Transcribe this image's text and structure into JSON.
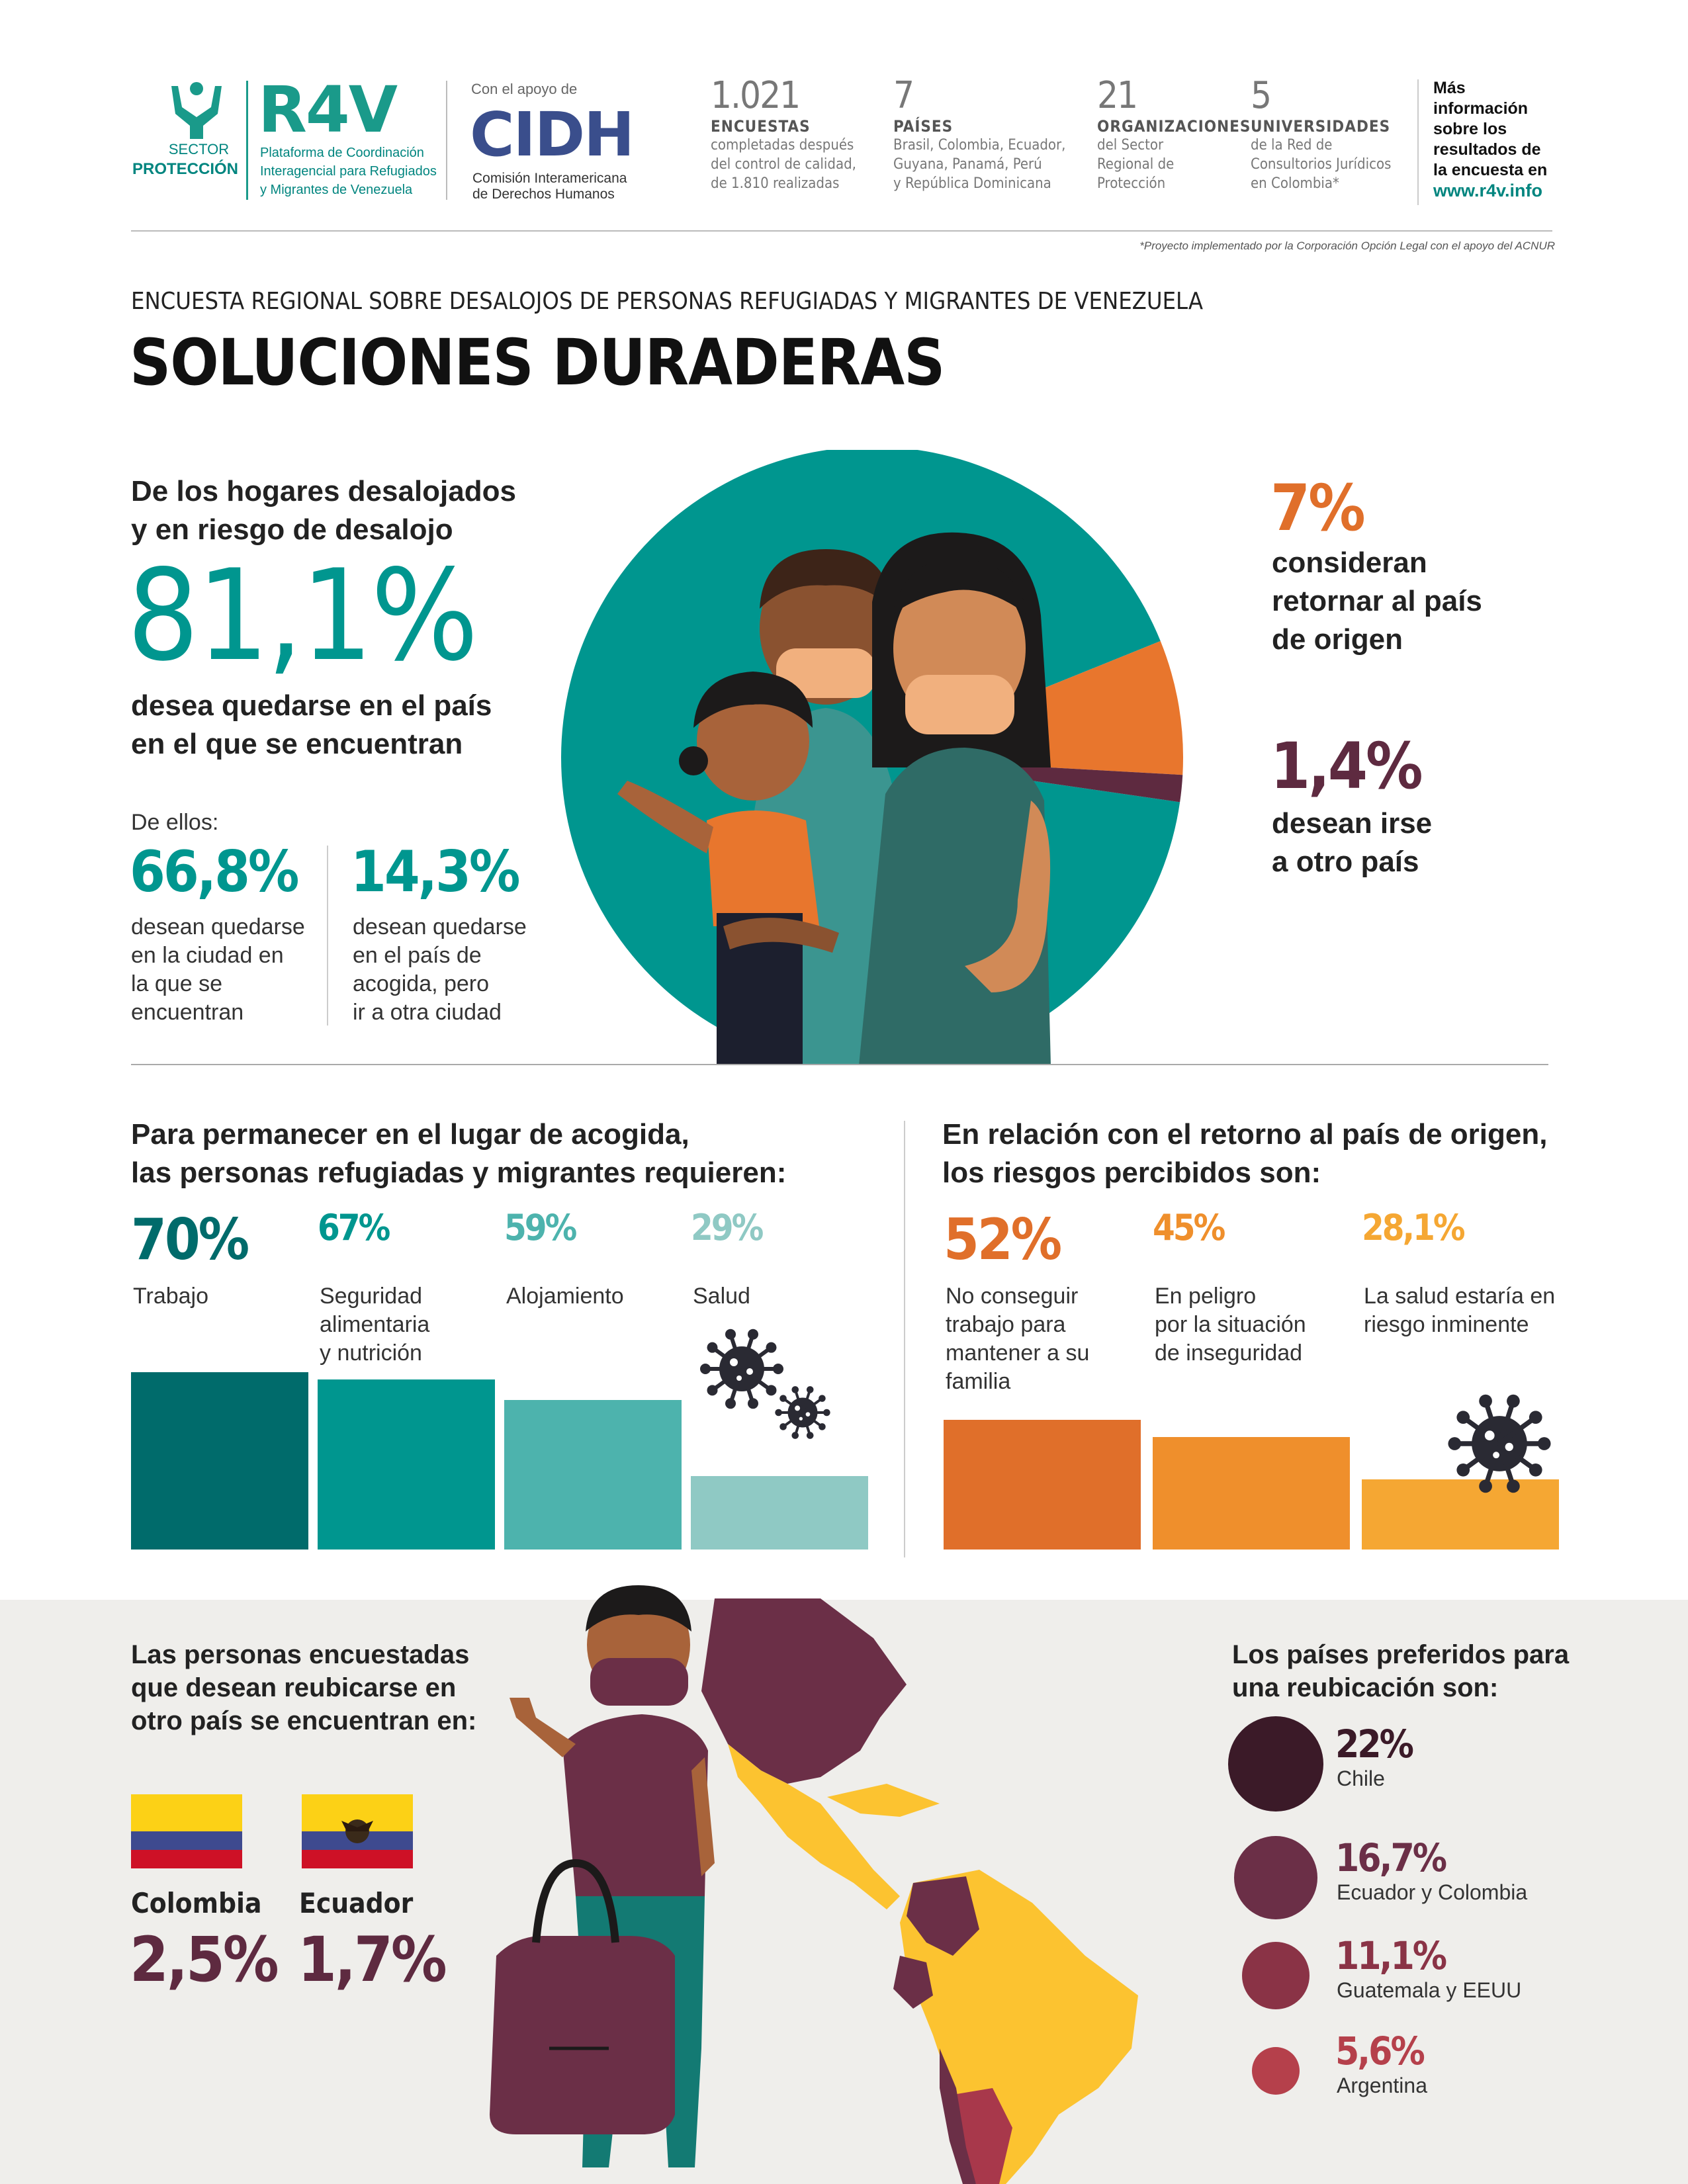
{
  "header": {
    "sector_line1": "SECTOR",
    "sector_line2": "PROTECCIÓN",
    "r4v_logo": "R4V",
    "r4v_desc1": "Plataforma de Coordinación",
    "r4v_desc2": "Interagencial para Refugiados",
    "r4v_desc3": "y Migrantes de Venezuela",
    "support_label": "Con el apoyo de",
    "cidh_logo": "CIDH",
    "cidh_desc1": "Comisión Interamericana",
    "cidh_desc2": "de Derechos Humanos",
    "stats": [
      {
        "num": "1.021",
        "title": "ENCUESTAS",
        "desc": [
          "completadas después",
          "del control de calidad,",
          "de 1.810 realizadas"
        ]
      },
      {
        "num": "7",
        "title": "PAÍSES",
        "desc": [
          "Brasil, Colombia, Ecuador,",
          "Guyana, Panamá, Perú",
          "y República Dominicana"
        ]
      },
      {
        "num": "21",
        "title": "ORGANIZACIONES",
        "desc": [
          "del Sector",
          "Regional de",
          "Protección"
        ]
      },
      {
        "num": "5",
        "title": "UNIVERSIDADES",
        "desc": [
          "de la Red de",
          "Consultorios Jurídicos",
          "en Colombia*"
        ]
      }
    ],
    "more_info": [
      "Más",
      "información",
      "sobre los",
      "resultados de",
      "la encuesta en"
    ],
    "more_info_link": "www.r4v.info",
    "footnote": "*Proyecto implementado por la Corporación Opción Legal con el apoyo del ACNUR"
  },
  "title": {
    "subtitle": "ENCUESTA REGIONAL SOBRE DESALOJOS DE PERSONAS REFUGIADAS Y MIGRANTES DE VENEZUELA",
    "main": "SOLUCIONES DURADERAS"
  },
  "intro": {
    "lead1": "De los hogares desalojados",
    "lead2": "y en riesgo de desalojo",
    "big_pct": "81,1%",
    "big_desc1": "desea quedarse en el país",
    "big_desc2": "en el que se encuentran",
    "de_ellos": "De ellos:",
    "sub1_pct": "66,8%",
    "sub1_desc": [
      "desean quedarse",
      "en la ciudad en",
      "la que se",
      "encuentran"
    ],
    "sub2_pct": "14,3%",
    "sub2_desc": [
      "desean quedarse",
      "en el país de",
      "acogida, pero",
      "ir a otra ciudad"
    ],
    "right1_pct": "7%",
    "right1_desc": [
      "consideran",
      "retornar al país",
      "de origen"
    ],
    "right2_pct": "1,4%",
    "right2_desc": [
      "desean irse",
      "a otro país"
    ]
  },
  "pie_data": {
    "type": "pie",
    "values": [
      81.1,
      7,
      1.4
    ],
    "colors": [
      "#00968f",
      "#e8762d",
      "#5e2a40"
    ]
  },
  "requirements": {
    "heading1": "Para permanecer en el lugar de acogida,",
    "heading2": "las personas refugiadas y migrantes requieren:",
    "items": [
      {
        "pct": "70%",
        "label": [
          "Trabajo"
        ],
        "value": 70,
        "color": "#006b6b"
      },
      {
        "pct": "67%",
        "label": [
          "Seguridad",
          "alimentaria",
          "y nutrición"
        ],
        "value": 67,
        "color": "#00968f"
      },
      {
        "pct": "59%",
        "label": [
          "Alojamiento"
        ],
        "value": 59,
        "color": "#4db3ad"
      },
      {
        "pct": "29%",
        "label": [
          "Salud"
        ],
        "value": 29,
        "color": "#8fc9c4"
      }
    ]
  },
  "risks": {
    "heading1": "En relación con el retorno al país de origen,",
    "heading2": "los riesgos percibidos son:",
    "items": [
      {
        "pct": "52%",
        "label": [
          "No conseguir",
          "trabajo para",
          "mantener a su",
          "familia"
        ],
        "value": 52,
        "color": "#e06f2a"
      },
      {
        "pct": "45%",
        "label": [
          "En peligro",
          "por la situación",
          "de inseguridad"
        ],
        "value": 45,
        "color": "#ef8f2c"
      },
      {
        "pct": "28,1%",
        "label": [
          "La salud estaría en",
          "riesgo inminente"
        ],
        "value": 28.1,
        "color": "#f5a733"
      }
    ]
  },
  "relocation": {
    "heading": [
      "Las personas encuestadas",
      "que desean reubicarse en",
      "otro país se encuentran en:"
    ],
    "countries": [
      {
        "name": "Colombia",
        "pct": "2,5%"
      },
      {
        "name": "Ecuador",
        "pct": "1,7%"
      }
    ]
  },
  "preferred": {
    "heading": [
      "Los países preferidos para",
      "una reubicación son:"
    ],
    "items": [
      {
        "pct": "22%",
        "label": "Chile",
        "value": 22,
        "color": "#3b1a28"
      },
      {
        "pct": "16,7%",
        "label": "Ecuador y Colombia",
        "value": 16.7,
        "color": "#6b2f47"
      },
      {
        "pct": "11,1%",
        "label": "Guatemala y EEUU",
        "value": 11.1,
        "color": "#8a3346"
      },
      {
        "pct": "5,6%",
        "label": "Argentina",
        "value": 5.6,
        "color": "#b5404b"
      }
    ]
  }
}
